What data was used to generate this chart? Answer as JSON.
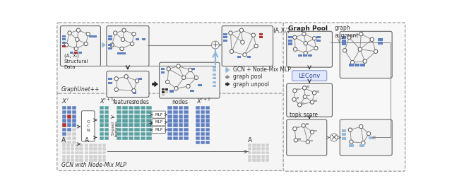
{
  "bg_color": "#ffffff",
  "border_color": "#666666",
  "blue_sq": "#6080c0",
  "red_sq": "#b03030",
  "light_blue_sq": "#99bbd8",
  "teal_rect": "#5aa0a0",
  "blue_rect": "#6080c0",
  "node_color": "#ffffff",
  "node_edge": "#555555",
  "arrow_blue": "#90b8d8",
  "text_color": "#222222",
  "title_left_top": "GraphUnet++",
  "title_right_top": "Graph Pool",
  "title_bottom_left": "GCN with Node-Mix MLP",
  "label_structural": "(A, Xᵢ)\nStructural\nData",
  "label_output_top": "(A,Xᵢ')",
  "label_gcn_legend": "GCN + Node-Mix MLP",
  "label_pool_legend": "graph pool",
  "label_unpool_legend": "graph unpool",
  "label_leconv": "LEConv",
  "label_graph_augment": "graph\naugment",
  "label_topk": "topk score",
  "label_features": "features",
  "label_nodes1": "nodes",
  "label_nodes2": "nodes",
  "label_xi": "$X^i$",
  "label_xi1": "$X^{i+1}$",
  "label_xi1b": "$X^{i+1}$",
  "label_xi2": "$X^{i+2}$",
  "label_a": "A",
  "label_a2": "A",
  "label_a3": "A"
}
